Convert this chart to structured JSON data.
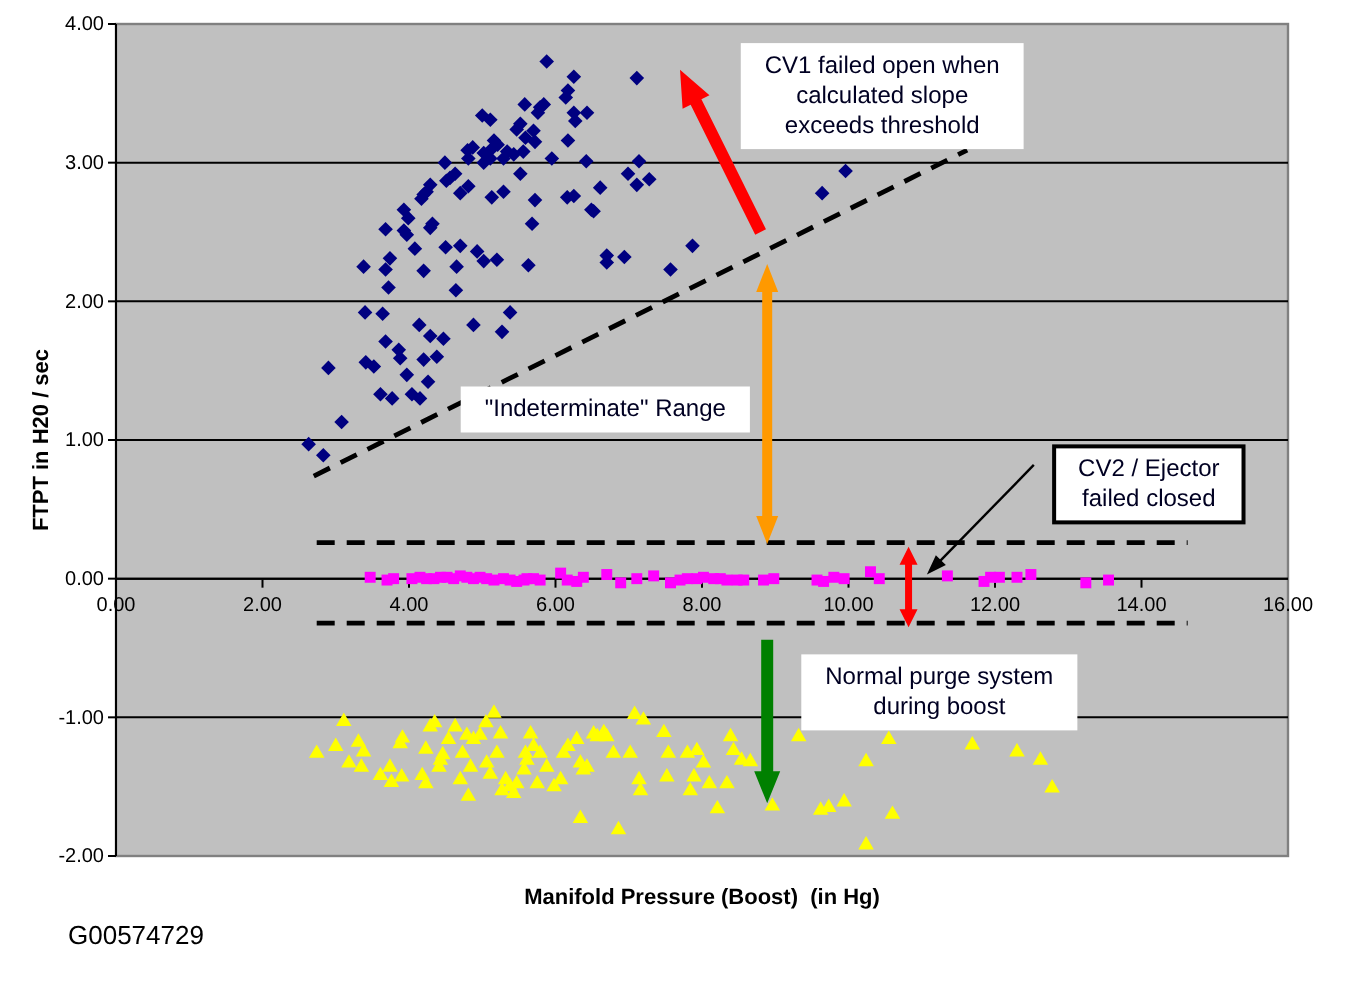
{
  "chart_data": {
    "type": "scatter",
    "xlabel": "Manifold Pressure (Boost)  (in Hg)",
    "ylabel": "FTPT in H20 / sec",
    "xlim": [
      0,
      16
    ],
    "ylim": [
      -2,
      4
    ],
    "xticks": [
      {
        "value": 0,
        "label": "0.00"
      },
      {
        "value": 2,
        "label": "2.00"
      },
      {
        "value": 4,
        "label": "4.00"
      },
      {
        "value": 6,
        "label": "6.00"
      },
      {
        "value": 8,
        "label": "8.00"
      },
      {
        "value": 10,
        "label": "10.00"
      },
      {
        "value": 12,
        "label": "12.00"
      },
      {
        "value": 14,
        "label": "14.00"
      },
      {
        "value": 16,
        "label": "16.00"
      }
    ],
    "yticks": [
      {
        "value": -2,
        "label": "-2.00"
      },
      {
        "value": -1,
        "label": "-1.00"
      },
      {
        "value": 0,
        "label": "0.00"
      },
      {
        "value": 1,
        "label": "1.00"
      },
      {
        "value": 2,
        "label": "2.00"
      },
      {
        "value": 3,
        "label": "3.00"
      },
      {
        "value": 4,
        "label": "4.00"
      }
    ],
    "grid": "y",
    "annotations": [
      "CV1 failed open when calculated slope exceeds threshold",
      "\"Indeterminate\" Range",
      "CV2 / Ejector failed closed",
      "Normal purge system during boost",
      "G00574729"
    ],
    "series": [
      {
        "type": "line",
        "color": "#000000",
        "line_style": "dashed",
        "x": [
          2.7,
          11.62
        ],
        "values": [
          0.74,
          3.09
        ]
      },
      {
        "type": "line",
        "color": "#000000",
        "line_style": "dashed",
        "x": [
          2.74,
          14.63
        ],
        "values": [
          0.26,
          0.26
        ]
      },
      {
        "type": "line",
        "color": "#000000",
        "line_style": "dashed",
        "x": [
          2.74,
          14.63
        ],
        "values": [
          -0.32,
          -0.32
        ]
      },
      {
        "color": "#000080",
        "marker": "diamond",
        "x": [
          5.88,
          6.25,
          6.17,
          6.14,
          7.11,
          5.84,
          5.58,
          5.79,
          5.76,
          6.25,
          6.43,
          6.27,
          5.0,
          5.11,
          5.52,
          5.47,
          5.7,
          5.59,
          5.72,
          6.17,
          5.16,
          5.21,
          5.11,
          5.02,
          5.34,
          5.43,
          5.56,
          5.29,
          4.8,
          4.87,
          4.81,
          5.02,
          4.49,
          5.11,
          5.95,
          6.42,
          7.14,
          6.99,
          7.11,
          7.28,
          4.56,
          4.63,
          4.51,
          4.81,
          4.7,
          5.52,
          5.29,
          5.13,
          5.72,
          6.61,
          6.16,
          6.25,
          6.49,
          6.52,
          4.29,
          4.2,
          4.17,
          4.24,
          3.93,
          3.99,
          3.93,
          3.97,
          4.32,
          4.29,
          3.68,
          5.68,
          4.08,
          4.5,
          4.7,
          4.93,
          5.02,
          5.2,
          5.63,
          6.7,
          6.7,
          6.94,
          7.87,
          7.57,
          3.74,
          3.68,
          3.38,
          4.2,
          4.65,
          3.72,
          4.64,
          3.4,
          3.64,
          5.38,
          4.88,
          4.14,
          5.27,
          3.68,
          4.29,
          4.47,
          3.86,
          3.88,
          4.38,
          4.2,
          3.41,
          3.52,
          2.9,
          3.97,
          4.26,
          3.61,
          3.77,
          4.04,
          4.15,
          3.08,
          2.63,
          2.83,
          9.64,
          9.96
        ],
        "values": [
          3.73,
          3.62,
          3.52,
          3.47,
          3.61,
          3.42,
          3.42,
          3.4,
          3.36,
          3.36,
          3.36,
          3.3,
          3.34,
          3.31,
          3.28,
          3.24,
          3.23,
          3.18,
          3.15,
          3.16,
          3.16,
          3.13,
          3.09,
          3.07,
          3.08,
          3.06,
          3.08,
          3.03,
          3.09,
          3.11,
          3.03,
          3.0,
          3.0,
          3.03,
          3.03,
          3.01,
          3.01,
          2.92,
          2.84,
          2.88,
          2.89,
          2.92,
          2.87,
          2.83,
          2.78,
          2.92,
          2.79,
          2.75,
          2.73,
          2.82,
          2.75,
          2.76,
          2.66,
          2.65,
          2.84,
          2.77,
          2.74,
          2.79,
          2.66,
          2.6,
          2.51,
          2.48,
          2.56,
          2.53,
          2.52,
          2.56,
          2.38,
          2.39,
          2.4,
          2.36,
          2.29,
          2.3,
          2.26,
          2.33,
          2.28,
          2.32,
          2.4,
          2.23,
          2.31,
          2.23,
          2.25,
          2.22,
          2.25,
          2.1,
          2.08,
          1.92,
          1.91,
          1.92,
          1.83,
          1.83,
          1.78,
          1.71,
          1.75,
          1.73,
          1.65,
          1.59,
          1.6,
          1.58,
          1.56,
          1.53,
          1.52,
          1.47,
          1.42,
          1.33,
          1.3,
          1.33,
          1.3,
          1.13,
          0.97,
          0.89,
          2.78,
          2.94
        ]
      },
      {
        "color": "#ff00ff",
        "marker": "square",
        "x": [
          3.47,
          3.7,
          3.79,
          4.04,
          4.15,
          4.24,
          4.34,
          4.43,
          4.52,
          4.61,
          4.7,
          4.79,
          4.88,
          4.97,
          5.06,
          5.16,
          5.29,
          5.38,
          5.47,
          5.57,
          5.61,
          5.7,
          5.79,
          6.07,
          6.16,
          6.29,
          6.38,
          6.7,
          6.89,
          7.11,
          7.34,
          7.57,
          7.7,
          7.8,
          7.93,
          8.02,
          8.16,
          8.25,
          8.34,
          8.48,
          8.57,
          8.84,
          8.98,
          9.57,
          9.66,
          9.8,
          9.94,
          10.3,
          10.42,
          11.35,
          11.85,
          11.94,
          12.06,
          12.3,
          12.49,
          13.24,
          13.55
        ],
        "values": [
          0.01,
          -0.01,
          0.0,
          0.0,
          0.01,
          0.0,
          0.0,
          0.01,
          0.01,
          0.0,
          0.02,
          0.01,
          0.0,
          0.01,
          0.0,
          -0.01,
          0.0,
          -0.01,
          -0.02,
          -0.01,
          0.0,
          0.0,
          -0.01,
          0.04,
          -0.01,
          -0.02,
          0.01,
          0.03,
          -0.03,
          0.0,
          0.02,
          -0.03,
          -0.01,
          0.0,
          0.0,
          0.01,
          0.0,
          0.0,
          -0.01,
          -0.01,
          -0.01,
          -0.01,
          0.0,
          -0.01,
          -0.02,
          0.01,
          0.0,
          0.05,
          0.0,
          0.02,
          -0.02,
          0.01,
          0.01,
          0.01,
          0.03,
          -0.03,
          -0.01
        ]
      },
      {
        "color": "#ffff00",
        "marker": "triangle",
        "x": [
          2.74,
          3.0,
          3.11,
          3.18,
          3.31,
          3.38,
          3.35,
          3.61,
          3.74,
          3.76,
          3.9,
          3.88,
          3.91,
          4.18,
          4.23,
          4.23,
          4.29,
          4.35,
          4.41,
          4.43,
          4.46,
          4.54,
          4.63,
          4.7,
          4.73,
          4.79,
          4.81,
          4.84,
          4.88,
          4.97,
          5.05,
          5.06,
          5.11,
          5.16,
          5.2,
          5.25,
          5.27,
          5.32,
          5.38,
          5.43,
          5.47,
          5.57,
          5.59,
          5.61,
          5.66,
          5.7,
          5.75,
          5.79,
          5.88,
          5.98,
          6.07,
          6.11,
          6.17,
          6.29,
          6.34,
          6.38,
          6.43,
          6.52,
          6.57,
          6.66,
          6.7,
          6.79,
          7.02,
          7.08,
          7.14,
          7.16,
          7.2,
          7.48,
          7.52,
          7.54,
          7.8,
          7.84,
          7.89,
          7.93,
          8.02,
          8.1,
          8.21,
          8.34,
          8.39,
          8.43,
          8.54,
          8.66,
          6.34,
          6.86,
          8.96,
          9.32,
          9.62,
          9.73,
          9.94,
          10.24,
          10.24,
          10.55,
          10.6,
          11.69,
          12.3,
          12.62,
          12.78
        ],
        "values": [
          -1.26,
          -1.21,
          -1.03,
          -1.33,
          -1.18,
          -1.25,
          -1.36,
          -1.42,
          -1.36,
          -1.47,
          -1.43,
          -1.19,
          -1.15,
          -1.42,
          -1.48,
          -1.23,
          -1.07,
          -1.04,
          -1.36,
          -1.31,
          -1.27,
          -1.16,
          -1.07,
          -1.45,
          -1.26,
          -1.13,
          -1.57,
          -1.36,
          -1.16,
          -1.13,
          -1.04,
          -1.33,
          -1.41,
          -0.97,
          -1.26,
          -1.12,
          -1.53,
          -1.45,
          -1.5,
          -1.55,
          -1.48,
          -1.38,
          -1.26,
          -1.31,
          -1.12,
          -1.21,
          -1.48,
          -1.26,
          -1.36,
          -1.5,
          -1.45,
          -1.26,
          -1.21,
          -1.16,
          -1.33,
          -1.38,
          -1.36,
          -1.12,
          -1.14,
          -1.11,
          -1.14,
          -1.26,
          -1.26,
          -0.98,
          -1.45,
          -1.53,
          -1.02,
          -1.11,
          -1.43,
          -1.26,
          -1.26,
          -1.53,
          -1.43,
          -1.24,
          -1.33,
          -1.48,
          -1.66,
          -1.48,
          -1.14,
          -1.24,
          -1.31,
          -1.32,
          -1.73,
          -1.81,
          -1.64,
          -1.14,
          -1.67,
          -1.65,
          -1.61,
          -1.32,
          -1.92,
          -1.16,
          -1.7,
          -1.2,
          -1.25,
          -1.31,
          -1.51
        ]
      }
    ]
  }
}
